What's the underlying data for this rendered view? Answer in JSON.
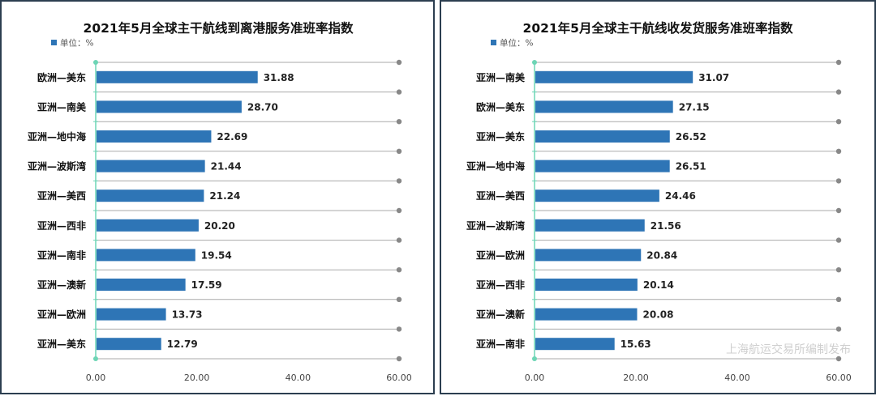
{
  "chart_data": [
    {
      "type": "bar",
      "orientation": "horizontal",
      "title": "2021年5月全球主干航线到离港服务准班率指数",
      "legend": "单位：%",
      "categories": [
        "欧洲—美东",
        "亚洲—南美",
        "亚洲—地中海",
        "亚洲—波斯湾",
        "亚洲—美西",
        "亚洲—西非",
        "亚洲—南非",
        "亚洲—澳新",
        "亚洲—欧洲",
        "亚洲—美东"
      ],
      "values": [
        31.88,
        28.7,
        22.69,
        21.44,
        21.24,
        20.2,
        19.54,
        17.59,
        13.73,
        12.79
      ],
      "value_labels": [
        "31.88",
        "28.70",
        "22.69",
        "21.44",
        "21.24",
        "20.20",
        "19.54",
        "17.59",
        "13.73",
        "12.79"
      ],
      "xlim": [
        0,
        60
      ],
      "xticks": [
        "0.00",
        "20.00",
        "40.00",
        "60.00"
      ],
      "grid": true,
      "legend_position": "top-left",
      "bar_color": "#2e75b6"
    },
    {
      "type": "bar",
      "orientation": "horizontal",
      "title": "2021年5月全球主干航线收发货服务准班率指数",
      "legend": "单位：%",
      "categories": [
        "亚洲—南美",
        "欧洲—美东",
        "亚洲—美东",
        "亚洲—地中海",
        "亚洲—美西",
        "亚洲—波斯湾",
        "亚洲—欧洲",
        "亚洲—西非",
        "亚洲—澳新",
        "亚洲—南非"
      ],
      "values": [
        31.07,
        27.15,
        26.52,
        26.51,
        24.46,
        21.56,
        20.84,
        20.14,
        20.08,
        15.63
      ],
      "value_labels": [
        "31.07",
        "27.15",
        "26.52",
        "26.51",
        "24.46",
        "21.56",
        "20.84",
        "20.14",
        "20.08",
        "15.63"
      ],
      "xlim": [
        0,
        60
      ],
      "xticks": [
        "0.00",
        "20.00",
        "40.00",
        "60.00"
      ],
      "grid": true,
      "legend_position": "top-left",
      "bar_color": "#2e75b6",
      "watermark": "上海航运交易所编制发布"
    }
  ]
}
